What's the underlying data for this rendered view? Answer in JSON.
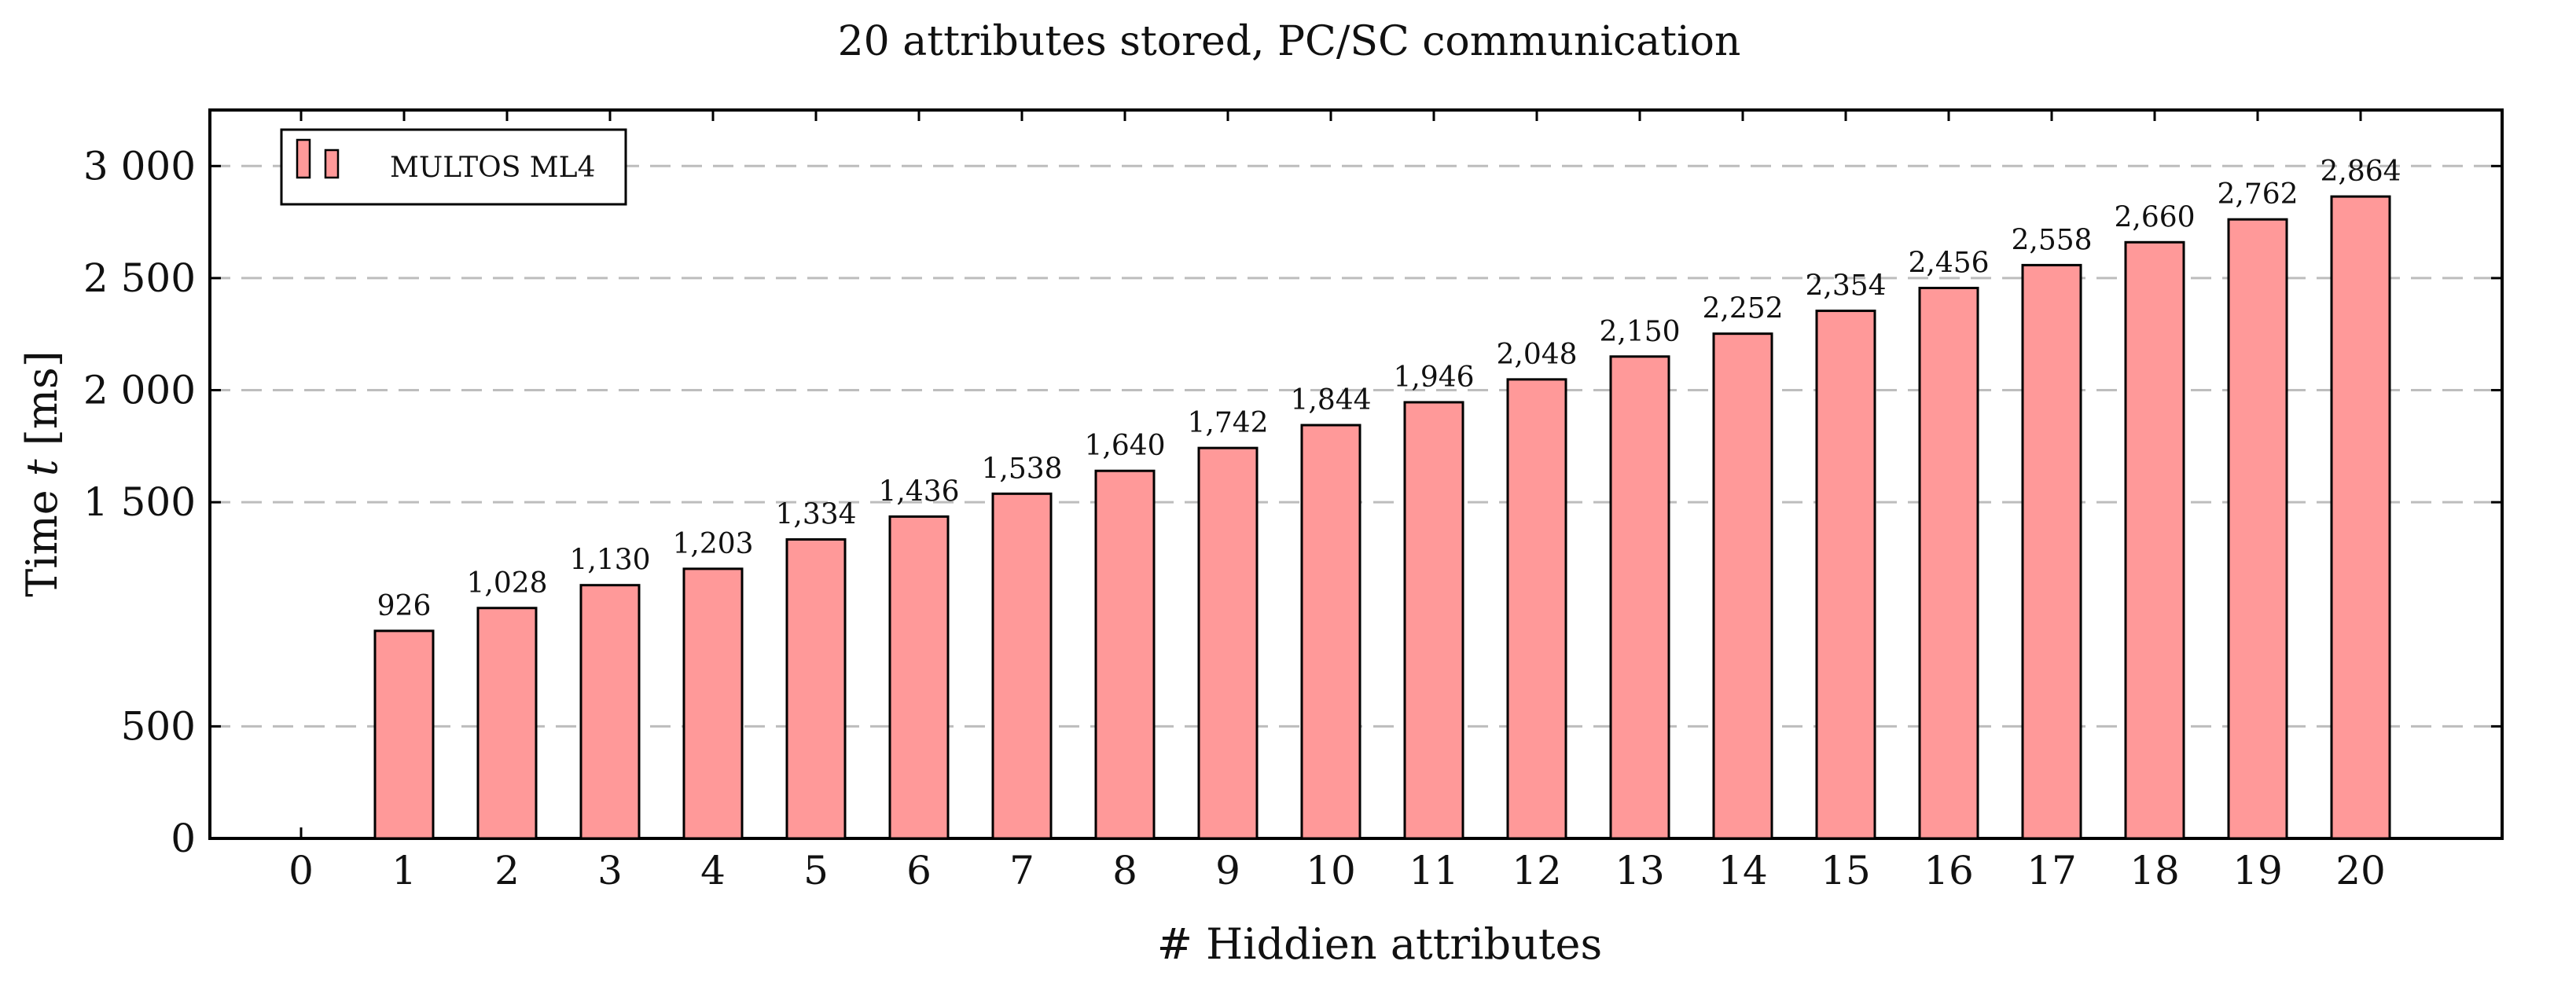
{
  "chart_data": {
    "type": "bar",
    "title": "20 attributes stored, PC/SC communication",
    "xlabel": "# Hiddien attributes",
    "ylabel_prefix": "Time ",
    "ylabel_var": "t",
    "ylabel_suffix": " [ms]",
    "categories": [
      "0",
      "1",
      "2",
      "3",
      "4",
      "5",
      "6",
      "7",
      "8",
      "9",
      "10",
      "11",
      "12",
      "13",
      "14",
      "15",
      "16",
      "17",
      "18",
      "19",
      "20"
    ],
    "series": [
      {
        "name": "MULTOS ML4",
        "color": "#ff9999",
        "values": [
          null,
          926,
          1028,
          1130,
          1203,
          1334,
          1436,
          1538,
          1640,
          1742,
          1844,
          1946,
          2048,
          2150,
          2252,
          2354,
          2456,
          2558,
          2660,
          2762,
          2864
        ],
        "labels": [
          "",
          "926",
          "1,028",
          "1,130",
          "1,203",
          "1,334",
          "1,436",
          "1,538",
          "1,640",
          "1,742",
          "1,844",
          "1,946",
          "2,048",
          "2,150",
          "2,252",
          "2,354",
          "2,456",
          "2,558",
          "2,660",
          "2,762",
          "2,864"
        ]
      }
    ],
    "yticks": [
      0,
      500,
      1500,
      2000,
      2500,
      3000
    ],
    "ytick_labels": [
      "0",
      "500",
      "1 500",
      "2 000",
      "2 500",
      "3 000"
    ],
    "ylim": [
      0,
      3250
    ],
    "grid": "horizontal dashed",
    "legend": "top-left"
  }
}
